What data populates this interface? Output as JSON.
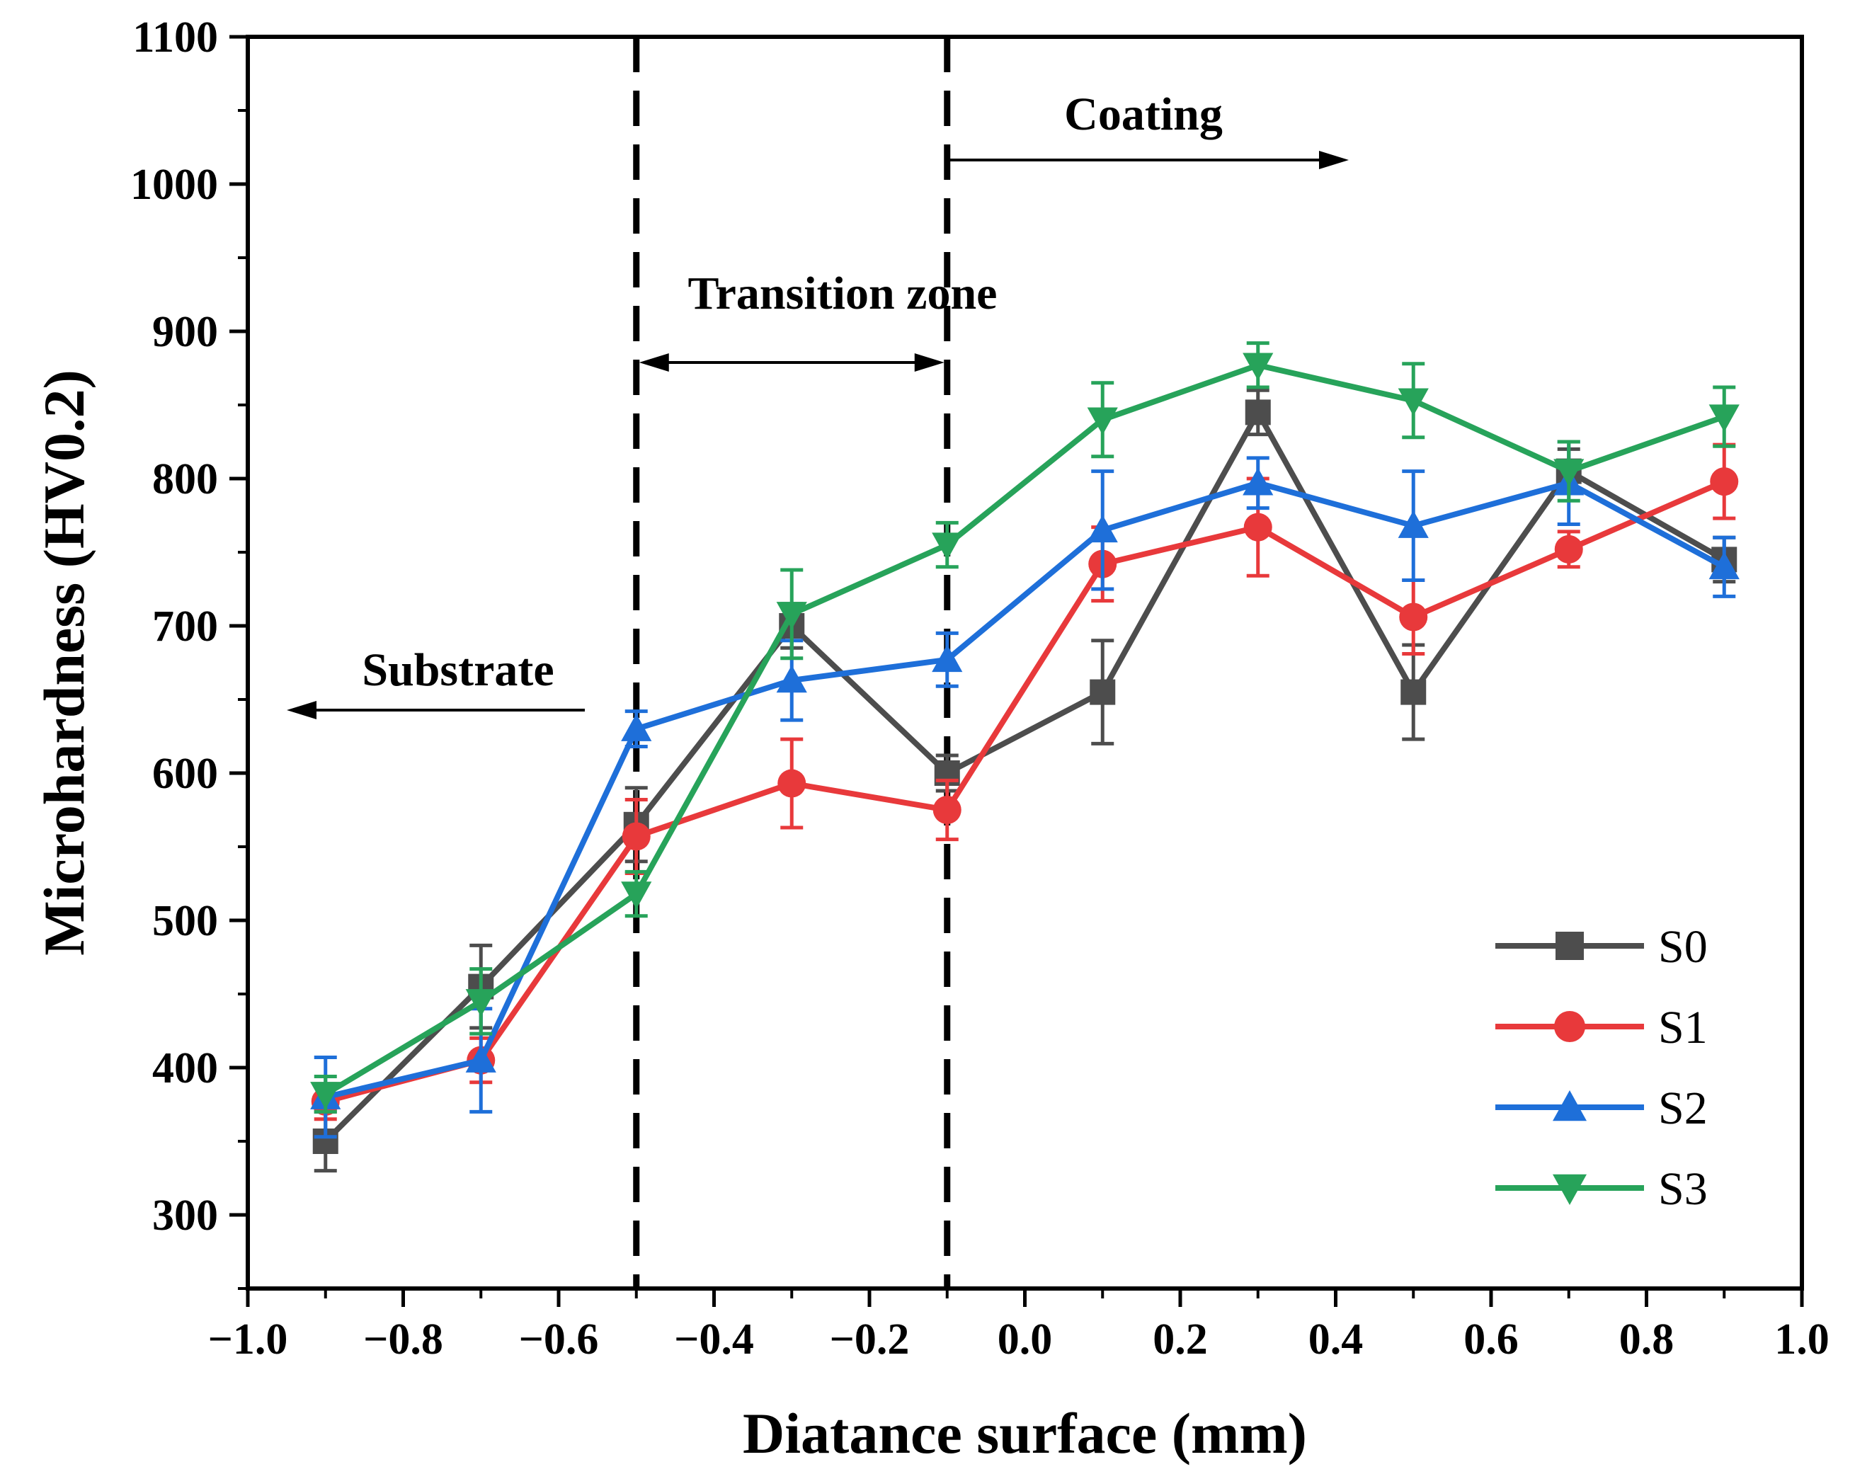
{
  "chart_data": {
    "type": "line",
    "title": "",
    "xlabel": "Diatance surface (mm)",
    "ylabel": "Microhardness (HV0.2)",
    "xlim": [
      -1.0,
      1.0
    ],
    "ylim": [
      250,
      1100
    ],
    "xticks": [
      -1.0,
      -0.8,
      -0.6,
      -0.4,
      -0.2,
      0.0,
      0.2,
      0.4,
      0.6,
      0.8,
      1.0
    ],
    "xtick_labels": [
      "−1.0",
      "−0.8",
      "−0.6",
      "−0.4",
      "−0.2",
      "0.0",
      "0.2",
      "0.4",
      "0.6",
      "0.8",
      "1.0"
    ],
    "yticks": [
      300,
      400,
      500,
      600,
      700,
      800,
      900,
      1000,
      1100
    ],
    "ytick_labels": [
      "300",
      "400",
      "500",
      "600",
      "700",
      "800",
      "900",
      "1000",
      "1100"
    ],
    "grid": false,
    "legend_position": "bottom-right",
    "x": [
      -0.9,
      -0.7,
      -0.5,
      -0.3,
      -0.1,
      0.1,
      0.3,
      0.5,
      0.7,
      0.9
    ],
    "series": [
      {
        "name": "S0",
        "color": "#4d4d4d",
        "marker": "square",
        "values": [
          350,
          455,
          565,
          700,
          600,
          655,
          845,
          655,
          805,
          745
        ],
        "errors": [
          20,
          28,
          25,
          15,
          12,
          35,
          15,
          32,
          15,
          15
        ]
      },
      {
        "name": "S1",
        "color": "#e8393b",
        "marker": "circle",
        "values": [
          377,
          405,
          557,
          593,
          575,
          742,
          767,
          706,
          752,
          798
        ],
        "errors": [
          12,
          15,
          25,
          30,
          20,
          25,
          33,
          25,
          12,
          25
        ]
      },
      {
        "name": "S2",
        "color": "#1e6fd9",
        "marker": "triangle-up",
        "values": [
          380,
          405,
          630,
          663,
          677,
          765,
          797,
          768,
          797,
          740
        ],
        "errors": [
          27,
          35,
          12,
          27,
          18,
          40,
          17,
          37,
          28,
          20
        ]
      },
      {
        "name": "S3",
        "color": "#27a35a",
        "marker": "triangle-down",
        "values": [
          382,
          445,
          518,
          708,
          755,
          840,
          877,
          853,
          805,
          842
        ],
        "errors": [
          12,
          22,
          15,
          30,
          15,
          25,
          15,
          25,
          20,
          20
        ]
      }
    ],
    "vlines": [
      -0.5,
      -0.1
    ],
    "annotations": {
      "coating": "Coating",
      "transition": "Transition zone",
      "substrate": "Substrate"
    }
  }
}
